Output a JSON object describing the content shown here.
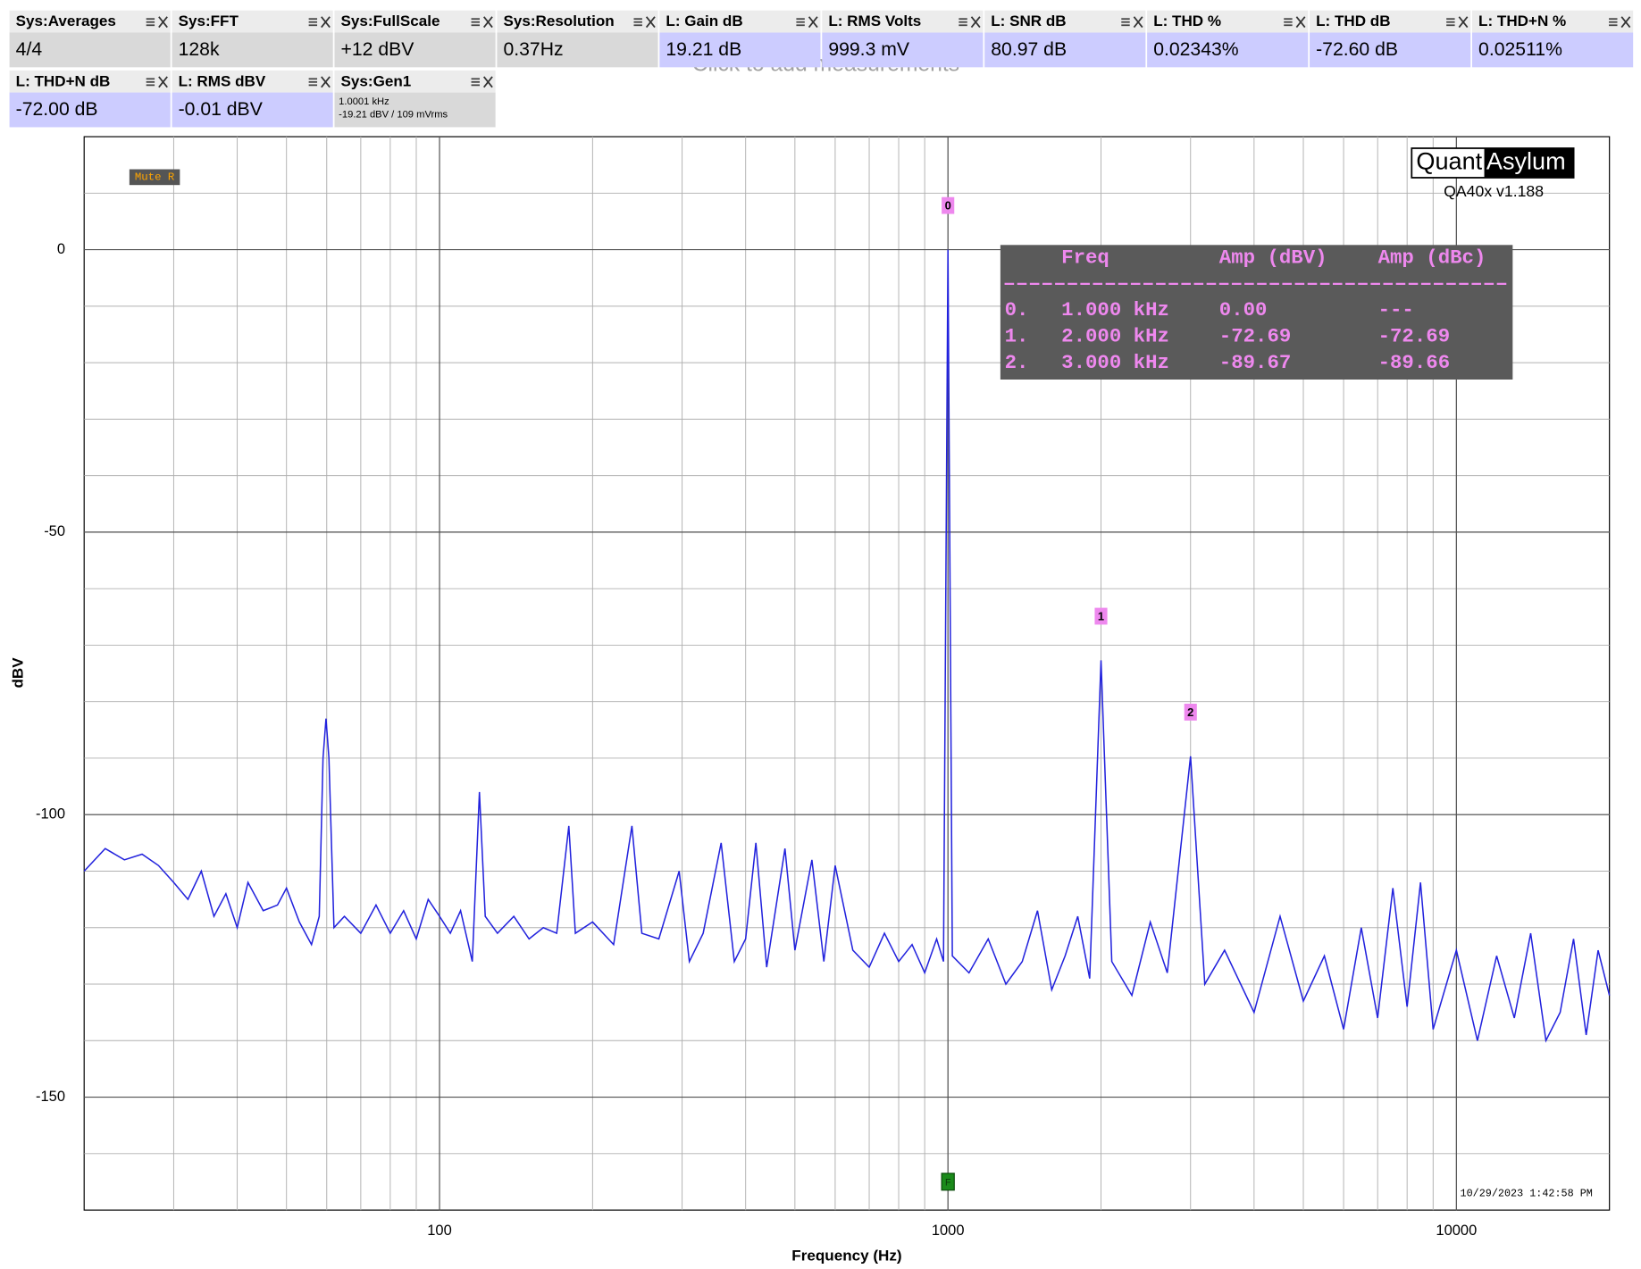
{
  "measurement_hint": "Click to add measurements",
  "tiles": [
    {
      "title": "Sys:Averages",
      "value": "4/4",
      "color": "#d9d9d9"
    },
    {
      "title": "Sys:FFT",
      "value": "128k",
      "color": "#d9d9d9"
    },
    {
      "title": "Sys:FullScale",
      "value": "+12 dBV",
      "color": "#d9d9d9"
    },
    {
      "title": "Sys:Resolution",
      "value": "0.37Hz",
      "color": "#d9d9d9"
    },
    {
      "title": "L: Gain dB",
      "value": "19.21 dB",
      "color": "#ccccff"
    },
    {
      "title": "L: RMS Volts",
      "value": "999.3 mV",
      "color": "#ccccff"
    },
    {
      "title": "L: SNR dB",
      "value": "80.97 dB",
      "color": "#ccccff"
    },
    {
      "title": "L: THD %",
      "value": "0.02343%",
      "color": "#ccccff"
    },
    {
      "title": "L: THD dB",
      "value": "-72.60 dB",
      "color": "#ccccff"
    },
    {
      "title": "L: THD+N %",
      "value": "0.02511%",
      "color": "#ccccff"
    },
    {
      "title": "L: THD+N dB",
      "value": "-72.00 dB",
      "color": "#ccccff"
    },
    {
      "title": "L: RMS dBV",
      "value": "-0.01 dBV",
      "color": "#ccccff"
    },
    {
      "title": "Sys:Gen1",
      "lines": [
        "1.0001 kHz",
        "-19.21 dBV  / 109 mVrms"
      ],
      "color": "#d9d9d9"
    }
  ],
  "chart_data": {
    "type": "line",
    "x_label": "Frequency (Hz)",
    "y_label": "dBV",
    "xlog": true,
    "grid": true,
    "xlim": [
      20,
      20000
    ],
    "xticks": [
      100,
      1000,
      10000
    ],
    "ylim": [
      -170,
      20
    ],
    "yticks": [
      -150,
      -100,
      -50,
      0
    ],
    "x": [
      20,
      22,
      24,
      26,
      28,
      30,
      32,
      34,
      36,
      38,
      40,
      42,
      45,
      48,
      50,
      53,
      56,
      58,
      59,
      59.8,
      60.6,
      62,
      65,
      70,
      75,
      80,
      85,
      90,
      95,
      100,
      105,
      110,
      116,
      119.8,
      123,
      130,
      140,
      150,
      160,
      170,
      179.6,
      185,
      200,
      220,
      239,
      250,
      270,
      296,
      310,
      330,
      358,
      380,
      400,
      419,
      440,
      478,
      500,
      540,
      570,
      600,
      650,
      700,
      750,
      800,
      850,
      900,
      950,
      980,
      1000,
      1020,
      1100,
      1200,
      1300,
      1400,
      1500,
      1600,
      1700,
      1800,
      1900,
      2000,
      2100,
      2300,
      2500,
      2700,
      3000,
      3200,
      3500,
      4000,
      4500,
      5000,
      5500,
      6000,
      6500,
      7000,
      7500,
      8000,
      8500,
      9000,
      10000,
      11000,
      12000,
      13000,
      14000,
      15000,
      16000,
      17000,
      18000,
      19000,
      20000
    ],
    "series": [
      {
        "name": "L",
        "color": "#2222dd",
        "values": [
          -110,
          -106,
          -108,
          -107,
          -109,
          -112,
          -115,
          -110,
          -118,
          -114,
          -120,
          -112,
          -117,
          -116,
          -113,
          -119,
          -123,
          -118,
          -90,
          -83,
          -90,
          -120,
          -118,
          -121,
          -116,
          -121,
          -117,
          -122,
          -115,
          -118,
          -121,
          -117,
          -126,
          -96,
          -118,
          -121,
          -118,
          -122,
          -120,
          -121,
          -102,
          -121,
          -119,
          -123,
          -102,
          -121,
          -122,
          -110,
          -126,
          -121,
          -105,
          -126,
          -122,
          -105,
          -127,
          -106,
          -124,
          -108,
          -126,
          -109,
          -124,
          -127,
          -121,
          -126,
          -123,
          -128,
          -122,
          -126,
          0,
          -125,
          -128,
          -122,
          -130,
          -126,
          -117,
          -131,
          -125,
          -118,
          -129,
          -72.69,
          -126,
          -132,
          -119,
          -128,
          -89.67,
          -130,
          -124,
          -135,
          -118,
          -133,
          -125,
          -138,
          -120,
          -136,
          -113,
          -134,
          -112,
          -138,
          -124,
          -140,
          -125,
          -136,
          -121,
          -140,
          -135,
          -122,
          -139,
          -124,
          -132
        ]
      }
    ],
    "peak_labels": [
      "0",
      "1",
      "2"
    ],
    "fundamental_marker": "F",
    "harmonic_table": {
      "headers": [
        "Freq",
        "Amp (dBV)",
        "Amp (dBc)"
      ],
      "rows": [
        [
          "0.",
          "1.000 kHz",
          "0.00",
          "---"
        ],
        [
          "1.",
          "2.000 kHz",
          "-72.69",
          "-72.69"
        ],
        [
          "2.",
          "3.000 kHz",
          "-89.67",
          "-89.66"
        ]
      ]
    },
    "channel_badge": "Mute R",
    "logo": {
      "left": "Quant",
      "right": "Asylum",
      "version": "QA40x v1.188"
    },
    "timestamp": "10/29/2023 1:42:58 PM"
  }
}
